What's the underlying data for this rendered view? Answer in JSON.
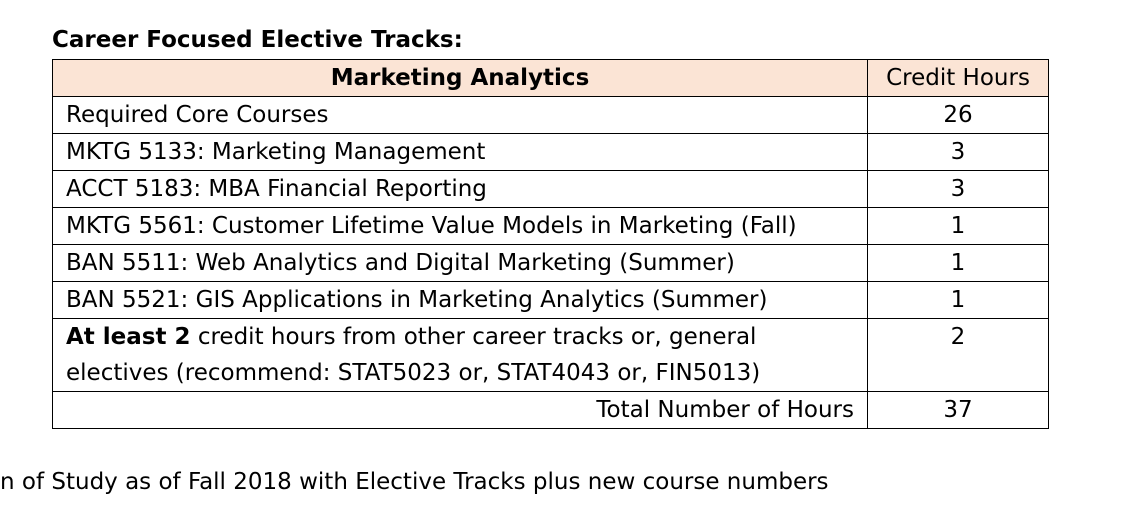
{
  "heading": "Career Focused Elective Tracks:",
  "table": {
    "header": {
      "track": "Marketing Analytics",
      "credit_hours": "Credit Hours"
    },
    "rows": [
      {
        "course": "Required Core Courses",
        "hours": "26"
      },
      {
        "course": "MKTG 5133: Marketing Management",
        "hours": "3"
      },
      {
        "course": "ACCT 5183: MBA Financial Reporting",
        "hours": "3"
      },
      {
        "course": "MKTG 5561: Customer Lifetime Value Models in Marketing (Fall)",
        "hours": "1"
      },
      {
        "course": "BAN 5511: Web Analytics and Digital Marketing (Summer)",
        "hours": "1"
      },
      {
        "course": "BAN 5521: GIS Applications in Marketing Analytics (Summer)",
        "hours": "1"
      }
    ],
    "elective_row": {
      "bold_text": "At least 2",
      "rest_text": " credit hours from other career tracks or, general electives (recommend: STAT5023 or, STAT4043 or, FIN5013)",
      "hours": "2"
    },
    "total": {
      "label": "Total Number of Hours",
      "hours": "37"
    }
  },
  "footer": "n of Study as of Fall 2018 with Elective Tracks plus new course numbers"
}
